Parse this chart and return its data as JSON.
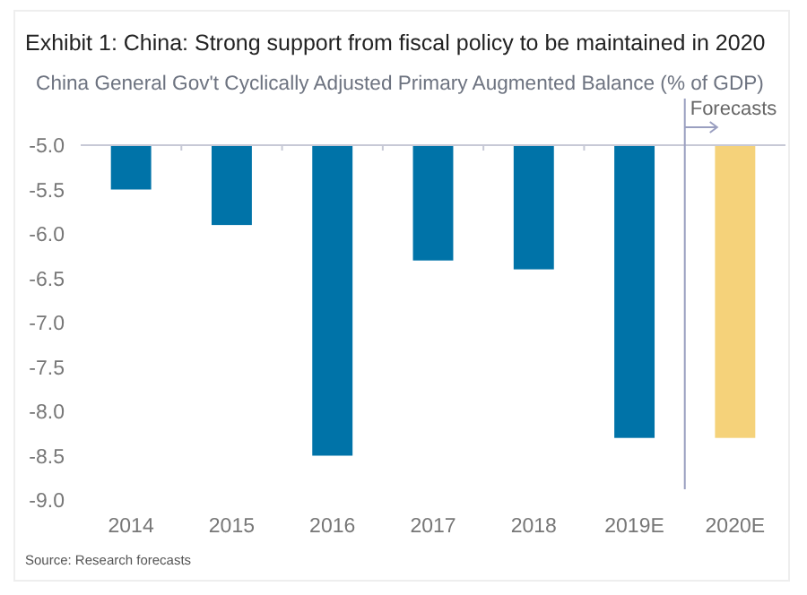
{
  "chart_data": {
    "type": "bar",
    "title": "Exhibit 1: China: Strong support from fiscal policy to be maintained in 2020",
    "subtitle": "China General Gov't Cyclically Adjusted Primary Augmented Balance (% of GDP)",
    "categories": [
      "2014",
      "2015",
      "2016",
      "2017",
      "2018",
      "2019E",
      "2020E"
    ],
    "values": [
      -5.5,
      -5.9,
      -8.5,
      -6.3,
      -6.4,
      -8.3,
      -8.3
    ],
    "colors": [
      "#0073a8",
      "#0073a8",
      "#0073a8",
      "#0073a8",
      "#0073a8",
      "#0073a8",
      "#f5d27a"
    ],
    "ylim": [
      -9,
      -5
    ],
    "yticks": [
      {
        "value": -9,
        "label": "-9.0"
      },
      {
        "value": -8.5,
        "label": "-8.5"
      },
      {
        "value": -8,
        "label": "-8.0"
      },
      {
        "value": -7.5,
        "label": "-7.5"
      },
      {
        "value": -7,
        "label": "-7.0"
      },
      {
        "value": -6.5,
        "label": "-6.5"
      },
      {
        "value": -6,
        "label": "-6.0"
      },
      {
        "value": -5.5,
        "label": "-5.5"
      },
      {
        "value": -5,
        "label": "-5.0"
      }
    ],
    "annotations": [
      "Forecasts",
      "Source: Research forecasts"
    ]
  }
}
